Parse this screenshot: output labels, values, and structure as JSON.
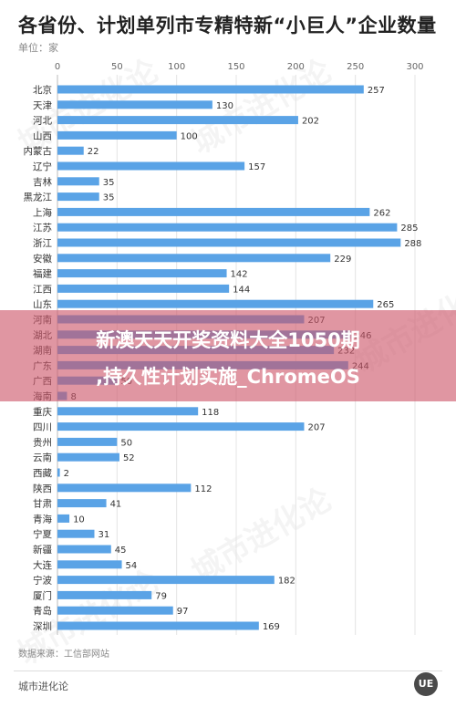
{
  "title": "各省份、计划单列市专精特新“小巨人”企业数量",
  "unit_label": "单位：家",
  "source": "数据来源：工信部网站",
  "brand": "城市进化论",
  "logo_text": "UE",
  "watermark_text": "城市进化论",
  "overlay": {
    "line1": "新澳天天开奖资料大全1050期",
    "line2": ",持久性计划实施_ChromeOS"
  },
  "colors": {
    "bar": "#5aa3e6",
    "grid": "#e4e4e4",
    "axis_text": "#666666",
    "overlay": "#cd5569"
  },
  "chart_data": {
    "type": "bar",
    "orientation": "horizontal",
    "xlim": [
      0,
      300
    ],
    "xticks": [
      0,
      50,
      100,
      150,
      200,
      250,
      300
    ],
    "grid": true,
    "categories": [
      "北京",
      "天津",
      "河北",
      "山西",
      "内蒙古",
      "辽宁",
      "吉林",
      "黑龙江",
      "上海",
      "江苏",
      "浙江",
      "安徽",
      "福建",
      "江西",
      "山东",
      "河南",
      "湖北",
      "湖南",
      "广东",
      "广西",
      "海南",
      "重庆",
      "四川",
      "贵州",
      "云南",
      "西藏",
      "陕西",
      "甘肃",
      "青海",
      "宁夏",
      "新疆",
      "大连",
      "宁波",
      "厦门",
      "青岛",
      "深圳"
    ],
    "values": [
      257,
      130,
      202,
      100,
      22,
      157,
      35,
      35,
      262,
      285,
      288,
      229,
      142,
      144,
      265,
      207,
      246,
      232,
      244,
      50,
      8,
      118,
      207,
      50,
      52,
      2,
      112,
      41,
      10,
      31,
      45,
      54,
      182,
      79,
      97,
      169
    ]
  }
}
